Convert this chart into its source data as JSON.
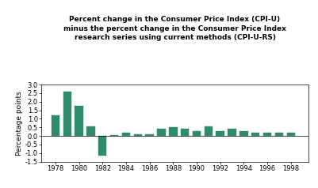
{
  "years": [
    1978,
    1979,
    1980,
    1981,
    1982,
    1983,
    1984,
    1985,
    1986,
    1987,
    1988,
    1989,
    1990,
    1991,
    1992,
    1993,
    1994,
    1996,
    1995,
    1997,
    1998
  ],
  "values": [
    1.2,
    2.6,
    1.75,
    0.57,
    -1.15,
    0.07,
    0.18,
    0.08,
    0.08,
    0.4,
    0.5,
    0.4,
    0.28,
    0.58,
    0.28,
    0.4,
    0.28,
    0.18,
    0.18,
    0.18,
    0.2
  ],
  "bar_color": "#2e8b6e",
  "title_line1": "Percent change in the Consumer Price Index (CPI-U)",
  "title_line2": "minus the percent change in the Consumer Price Index",
  "title_line3": "research series using current methods (CPI-U-RS)",
  "ylabel": "Percentage points",
  "ylim": [
    -1.5,
    3.0
  ],
  "yticks": [
    -1.5,
    -1.0,
    -0.5,
    0.0,
    0.5,
    1.0,
    1.5,
    2.0,
    2.5,
    3.0
  ],
  "xtick_labels": [
    "1978",
    "1980",
    "1982",
    "1984",
    "1986",
    "1988",
    "1990",
    "1992",
    "1994",
    "1996",
    "1998"
  ],
  "xtick_years": [
    1978,
    1980,
    1982,
    1984,
    1986,
    1988,
    1990,
    1992,
    1994,
    1996,
    1998
  ],
  "background_color": "#ffffff",
  "title_fontsize": 6.5,
  "ylabel_fontsize": 6.5,
  "tick_fontsize": 6.0
}
